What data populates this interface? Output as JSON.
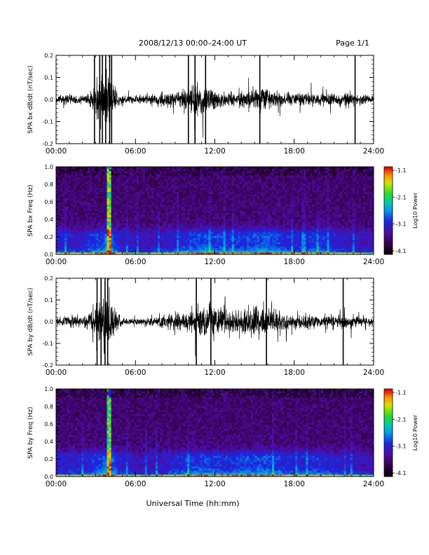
{
  "header": {
    "title": "2008/12/13  00:00–24:00 UT",
    "page": "Page 1/1"
  },
  "xlabel": "Universal Time (hh:mm)",
  "chart_data": [
    {
      "type": "line",
      "ylabel": "SPA bx dB/dt (nT/sec)",
      "xlim": [
        0,
        24
      ],
      "ylim": [
        -0.2,
        0.2
      ],
      "x_ticks": [
        "00:00",
        "06:00",
        "12:00",
        "18:00",
        "24:00"
      ],
      "y_ticks": [
        "-0.2",
        "-0.1",
        "0.0",
        "0.1",
        "0.2"
      ],
      "envelope": {
        "hours": [
          0,
          0.5,
          1,
          1.5,
          2,
          2.5,
          3,
          3.3,
          3.6,
          4.0,
          4.3,
          4.7,
          5,
          5.5,
          6,
          6.5,
          7,
          7.5,
          8,
          8.5,
          9,
          9.5,
          10,
          10.5,
          11,
          11.5,
          12,
          12.5,
          13,
          13.5,
          14,
          14.5,
          15,
          15.5,
          16,
          16.5,
          17,
          17.5,
          18,
          18.5,
          19,
          19.5,
          20,
          20.5,
          21,
          21.5,
          22,
          22.5,
          23,
          23.5,
          24
        ],
        "amplitude": [
          0.03,
          0.035,
          0.04,
          0.035,
          0.035,
          0.05,
          0.12,
          0.2,
          0.2,
          0.2,
          0.12,
          0.06,
          0.035,
          0.03,
          0.03,
          0.03,
          0.035,
          0.04,
          0.05,
          0.05,
          0.06,
          0.07,
          0.1,
          0.12,
          0.13,
          0.1,
          0.08,
          0.06,
          0.06,
          0.06,
          0.06,
          0.07,
          0.08,
          0.1,
          0.09,
          0.07,
          0.05,
          0.05,
          0.05,
          0.05,
          0.06,
          0.05,
          0.05,
          0.05,
          0.05,
          0.05,
          0.06,
          0.05,
          0.04,
          0.035,
          0.03
        ]
      },
      "spikes_hours": [
        2.9,
        3.3,
        3.5,
        3.75,
        4.05,
        4.2,
        10.0,
        10.5,
        11.3,
        15.4,
        22.6
      ]
    },
    {
      "type": "heatmap",
      "ylabel": "SPA bx Freq (Hz)",
      "colorbar_label": "Log10 Power",
      "colorbar_ticks": [
        "-1.1",
        "-2.1",
        "-3.1",
        "-4.1"
      ],
      "xlim": [
        0,
        24
      ],
      "ylim": [
        0,
        1.0
      ],
      "x_ticks": [
        "00:00",
        "06:00",
        "12:00",
        "18:00",
        "24:00"
      ],
      "y_ticks": [
        "0.0",
        "0.2",
        "0.4",
        "0.6",
        "0.8",
        "1.0"
      ],
      "power_range": [
        -4.1,
        -1.1
      ],
      "activity": {
        "hours": [
          0,
          1,
          2,
          3,
          3.5,
          4,
          4.5,
          5,
          6,
          7,
          8,
          9,
          10,
          11,
          12,
          13,
          14,
          15,
          16,
          17,
          18,
          19,
          20,
          21,
          22,
          23,
          24
        ],
        "level": [
          0.55,
          0.5,
          0.5,
          0.7,
          0.8,
          1.0,
          0.7,
          0.45,
          0.4,
          0.4,
          0.45,
          0.55,
          0.7,
          0.8,
          0.75,
          0.65,
          0.7,
          0.75,
          0.85,
          0.7,
          0.55,
          0.65,
          0.7,
          0.55,
          0.45,
          0.4,
          0.35
        ]
      },
      "bright_columns_hours": [
        3.95,
        4.05
      ]
    },
    {
      "type": "line",
      "ylabel": "SPA by dB/dt (nT/sec)",
      "xlim": [
        0,
        24
      ],
      "ylim": [
        -0.2,
        0.2
      ],
      "x_ticks": [
        "00:00",
        "06:00",
        "12:00",
        "18:00",
        "24:00"
      ],
      "y_ticks": [
        "-0.2",
        "-0.1",
        "0.0",
        "0.1",
        "0.2"
      ],
      "envelope": {
        "hours": [
          0,
          0.5,
          1,
          1.5,
          2,
          2.5,
          3,
          3.3,
          3.6,
          4.0,
          4.3,
          4.7,
          5,
          5.5,
          6,
          6.5,
          7,
          7.5,
          8,
          8.5,
          9,
          9.5,
          10,
          10.5,
          11,
          11.5,
          12,
          12.5,
          13,
          13.5,
          14,
          14.5,
          15,
          15.5,
          16,
          16.5,
          17,
          17.5,
          18,
          18.5,
          19,
          19.5,
          20,
          20.5,
          21,
          21.5,
          22,
          22.5,
          23,
          23.5,
          24
        ],
        "amplitude": [
          0.03,
          0.04,
          0.045,
          0.04,
          0.04,
          0.06,
          0.14,
          0.2,
          0.2,
          0.2,
          0.14,
          0.06,
          0.03,
          0.025,
          0.025,
          0.025,
          0.03,
          0.035,
          0.05,
          0.06,
          0.07,
          0.08,
          0.09,
          0.1,
          0.12,
          0.13,
          0.12,
          0.11,
          0.1,
          0.1,
          0.1,
          0.11,
          0.13,
          0.12,
          0.1,
          0.09,
          0.08,
          0.07,
          0.06,
          0.06,
          0.07,
          0.06,
          0.05,
          0.05,
          0.05,
          0.05,
          0.05,
          0.05,
          0.04,
          0.035,
          0.03
        ]
      },
      "spikes_hours": [
        3.1,
        3.4,
        3.7,
        3.9,
        10.6,
        11.7,
        15.9,
        21.7
      ]
    },
    {
      "type": "heatmap",
      "ylabel": "SPA by Freq (Hz)",
      "colorbar_label": "Log10 Power",
      "colorbar_ticks": [
        "-1.1",
        "-2.1",
        "-3.1",
        "-4.1"
      ],
      "xlim": [
        0,
        24
      ],
      "ylim": [
        0,
        1.0
      ],
      "x_ticks": [
        "00:00",
        "06:00",
        "12:00",
        "18:00",
        "24:00"
      ],
      "y_ticks": [
        "0.0",
        "0.2",
        "0.4",
        "0.6",
        "0.8",
        "1.0"
      ],
      "power_range": [
        -4.1,
        -1.1
      ],
      "activity": {
        "hours": [
          0,
          1,
          2,
          3,
          3.5,
          4,
          4.5,
          5,
          6,
          7,
          8,
          9,
          10,
          11,
          12,
          13,
          14,
          15,
          16,
          17,
          18,
          19,
          20,
          21,
          22,
          23,
          24
        ],
        "level": [
          0.55,
          0.5,
          0.5,
          0.7,
          0.8,
          1.0,
          0.7,
          0.45,
          0.4,
          0.4,
          0.45,
          0.55,
          0.7,
          0.75,
          0.7,
          0.65,
          0.75,
          0.75,
          0.8,
          0.65,
          0.55,
          0.6,
          0.65,
          0.55,
          0.45,
          0.4,
          0.35
        ]
      },
      "bright_columns_hours": [
        3.95,
        4.05
      ]
    }
  ]
}
